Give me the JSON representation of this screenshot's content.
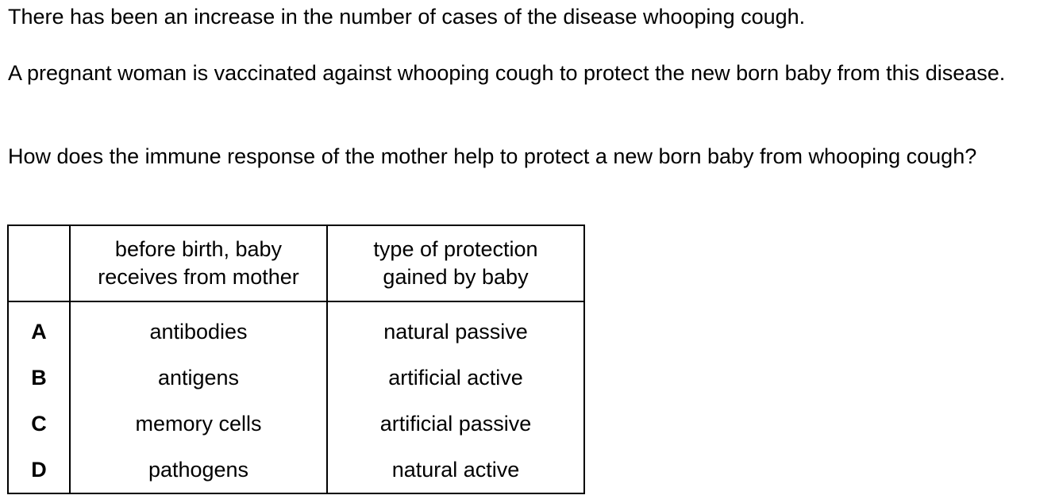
{
  "question": {
    "paragraphs": [
      "There has been an increase in the number of cases of the disease whooping cough.",
      "A pregnant woman is vaccinated against whooping cough to protect the new born baby from this disease.",
      "How does the immune response of the mother help to protect a new born baby from whooping cough?"
    ]
  },
  "table": {
    "headers": {
      "letter": "",
      "receives": "before birth, baby receives from mother",
      "protection": "type of protection gained by baby"
    },
    "rows": [
      {
        "letter": "A",
        "receives": "antibodies",
        "protection": "natural passive"
      },
      {
        "letter": "B",
        "receives": "antigens",
        "protection": "artificial active"
      },
      {
        "letter": "C",
        "receives": "memory cells",
        "protection": "artificial passive"
      },
      {
        "letter": "D",
        "receives": "pathogens",
        "protection": "natural active"
      }
    ]
  }
}
